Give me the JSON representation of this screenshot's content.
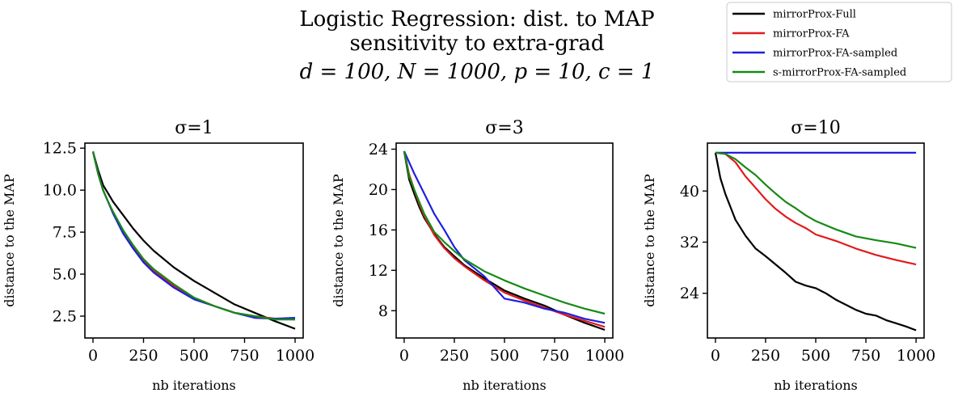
{
  "suptitle": {
    "line1": "Logistic Regression: dist. to MAP",
    "line2": "sensitivity to extra-grad",
    "line3": "d = 100, N = 1000, p = 10, c = 1"
  },
  "legend": {
    "placement": "top-right",
    "entries": [
      {
        "label": "mirrorProx-Full",
        "color": "#000000"
      },
      {
        "label": "mirrorProx-FA",
        "color": "#e31a1c"
      },
      {
        "label": "mirrorProx-FA-sampled",
        "color": "#1f1fe0"
      },
      {
        "label": "s-mirrorProx-FA-sampled",
        "color": "#168a16"
      }
    ]
  },
  "chart_data": [
    {
      "type": "line",
      "title": "σ=1",
      "xlabel": "nb iterations",
      "ylabel": "distance to the MAP",
      "xlim": [
        -40,
        1040
      ],
      "ylim": [
        1.2,
        12.8
      ],
      "xticks": [
        0,
        250,
        500,
        750,
        1000
      ],
      "xtick_labels": [
        "0",
        "250",
        "500",
        "750",
        "1000"
      ],
      "yticks": [
        2.5,
        5.0,
        7.5,
        10.0,
        12.5
      ],
      "ytick_labels": [
        "2.5",
        "5.0",
        "7.5",
        "10.0",
        "12.5"
      ],
      "series": [
        {
          "name": "mirrorProx-Full",
          "x": [
            0,
            25,
            50,
            75,
            100,
            150,
            200,
            250,
            300,
            400,
            500,
            600,
            700,
            800,
            900,
            1000
          ],
          "y": [
            12.3,
            11.2,
            10.3,
            9.8,
            9.3,
            8.5,
            7.7,
            7.0,
            6.4,
            5.4,
            4.6,
            3.9,
            3.2,
            2.7,
            2.2,
            1.75
          ]
        },
        {
          "name": "mirrorProx-FA",
          "x": [
            0,
            25,
            50,
            75,
            100,
            150,
            200,
            250,
            300,
            400,
            500,
            600,
            700,
            800,
            900,
            1000
          ],
          "y": [
            12.3,
            11.0,
            10.0,
            9.3,
            8.6,
            7.5,
            6.6,
            5.8,
            5.2,
            4.3,
            3.6,
            3.1,
            2.7,
            2.5,
            2.35,
            2.3
          ]
        },
        {
          "name": "mirrorProx-FA-sampled",
          "x": [
            0,
            25,
            50,
            75,
            100,
            150,
            200,
            250,
            300,
            400,
            500,
            600,
            700,
            800,
            900,
            1000
          ],
          "y": [
            12.3,
            11.0,
            10.0,
            9.3,
            8.6,
            7.4,
            6.5,
            5.7,
            5.1,
            4.2,
            3.5,
            3.1,
            2.7,
            2.4,
            2.35,
            2.4
          ]
        },
        {
          "name": "s-mirrorProx-FA-sampled",
          "x": [
            0,
            25,
            50,
            75,
            100,
            150,
            200,
            250,
            300,
            400,
            500,
            600,
            700,
            800,
            900,
            1000
          ],
          "y": [
            12.3,
            11.0,
            10.0,
            9.3,
            8.7,
            7.6,
            6.7,
            5.9,
            5.3,
            4.4,
            3.6,
            3.1,
            2.7,
            2.5,
            2.3,
            2.3
          ]
        }
      ]
    },
    {
      "type": "line",
      "title": "σ=3",
      "xlabel": "nb iterations",
      "ylabel": "distance to the MAP",
      "xlim": [
        -40,
        1040
      ],
      "ylim": [
        5.3,
        24.6
      ],
      "xticks": [
        0,
        250,
        500,
        750,
        1000
      ],
      "xtick_labels": [
        "0",
        "250",
        "500",
        "750",
        "1000"
      ],
      "yticks": [
        8,
        12,
        16,
        20,
        24
      ],
      "ytick_labels": [
        "8",
        "12",
        "16",
        "20",
        "24"
      ],
      "series": [
        {
          "name": "mirrorProx-Full",
          "x": [
            0,
            25,
            50,
            75,
            100,
            150,
            200,
            250,
            300,
            400,
            500,
            600,
            700,
            800,
            900,
            1000
          ],
          "y": [
            23.8,
            21.0,
            19.6,
            18.3,
            17.2,
            15.6,
            14.3,
            13.4,
            12.5,
            11.2,
            10.0,
            9.2,
            8.5,
            7.6,
            6.8,
            6.1
          ]
        },
        {
          "name": "mirrorProx-FA",
          "x": [
            0,
            25,
            50,
            75,
            100,
            150,
            200,
            250,
            300,
            400,
            500,
            600,
            700,
            800,
            900,
            1000
          ],
          "y": [
            23.8,
            21.5,
            20.0,
            18.6,
            17.4,
            15.5,
            14.2,
            13.2,
            12.4,
            11.0,
            9.8,
            9.0,
            8.3,
            7.6,
            7.0,
            6.4
          ]
        },
        {
          "name": "mirrorProx-FA-sampled",
          "x": [
            0,
            25,
            50,
            75,
            100,
            150,
            200,
            250,
            300,
            400,
            500,
            600,
            700,
            800,
            900,
            1000
          ],
          "y": [
            23.8,
            22.7,
            21.6,
            20.6,
            19.6,
            17.6,
            16.0,
            14.3,
            13.0,
            11.4,
            9.2,
            8.8,
            8.2,
            7.8,
            7.2,
            6.8
          ]
        },
        {
          "name": "s-mirrorProx-FA-sampled",
          "x": [
            0,
            25,
            50,
            75,
            100,
            150,
            200,
            250,
            300,
            400,
            500,
            600,
            700,
            800,
            900,
            1000
          ],
          "y": [
            23.8,
            21.3,
            20.0,
            18.8,
            17.6,
            15.8,
            14.8,
            13.9,
            13.1,
            11.9,
            11.0,
            10.2,
            9.5,
            8.8,
            8.2,
            7.7
          ]
        }
      ]
    },
    {
      "type": "line",
      "title": "σ=10",
      "xlabel": "nb iterations",
      "ylabel": "distance to the MAP",
      "xlim": [
        -40,
        1040
      ],
      "ylim": [
        17,
        47.5
      ],
      "xticks": [
        0,
        250,
        500,
        750,
        1000
      ],
      "xtick_labels": [
        "0",
        "250",
        "500",
        "750",
        "1000"
      ],
      "yticks": [
        24,
        32,
        40
      ],
      "ytick_labels": [
        "24",
        "32",
        "40"
      ],
      "series": [
        {
          "name": "mirrorProx-Full",
          "x": [
            0,
            25,
            50,
            75,
            100,
            150,
            200,
            250,
            300,
            350,
            400,
            450,
            500,
            550,
            600,
            650,
            700,
            750,
            800,
            850,
            900,
            950,
            1000
          ],
          "y": [
            46.0,
            42.0,
            39.5,
            37.5,
            35.5,
            33.0,
            31.0,
            29.8,
            28.5,
            27.2,
            25.8,
            25.2,
            24.8,
            24.0,
            23.0,
            22.2,
            21.4,
            20.8,
            20.5,
            19.8,
            19.3,
            18.8,
            18.2
          ]
        },
        {
          "name": "mirrorProx-FA",
          "x": [
            0,
            50,
            100,
            150,
            200,
            250,
            300,
            350,
            400,
            450,
            500,
            600,
            700,
            800,
            900,
            1000
          ],
          "y": [
            46.0,
            45.8,
            44.5,
            42.3,
            40.5,
            38.7,
            37.2,
            36.0,
            35.0,
            34.2,
            33.2,
            32.2,
            31.0,
            30.0,
            29.2,
            28.5
          ]
        },
        {
          "name": "mirrorProx-FA-sampled",
          "x": [
            0,
            250,
            500,
            750,
            1000
          ],
          "y": [
            46.0,
            46.0,
            46.0,
            46.0,
            46.0
          ]
        },
        {
          "name": "s-mirrorProx-FA-sampled",
          "x": [
            0,
            50,
            100,
            150,
            200,
            250,
            300,
            350,
            400,
            450,
            500,
            600,
            700,
            800,
            900,
            1000
          ],
          "y": [
            46.0,
            45.8,
            45.0,
            43.7,
            42.5,
            41.0,
            39.6,
            38.3,
            37.3,
            36.2,
            35.3,
            34.0,
            32.9,
            32.3,
            31.8,
            31.1
          ]
        }
      ]
    }
  ]
}
